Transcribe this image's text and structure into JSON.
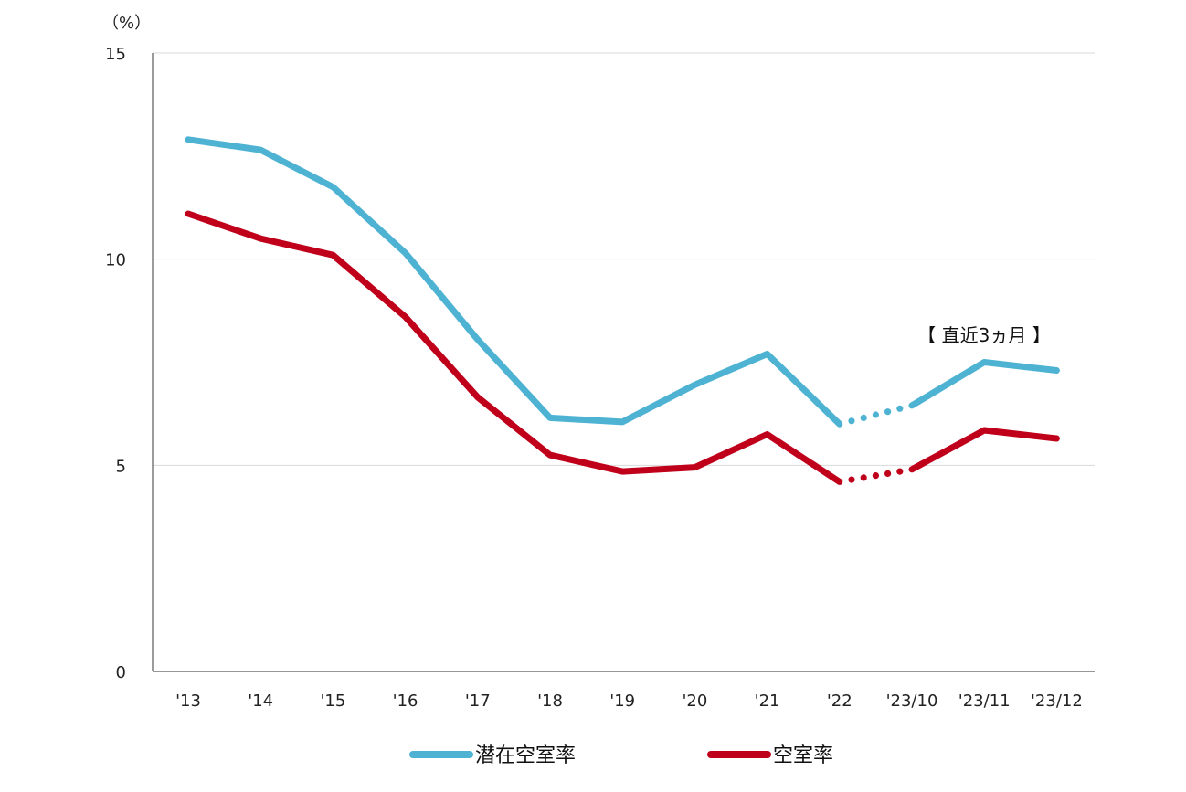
{
  "chart_data": {
    "type": "line",
    "title": "",
    "xlabel": "",
    "ylabel": "",
    "unit_label": "（%）",
    "categories": [
      "'13",
      "'14",
      "'15",
      "'16",
      "'17",
      "'18",
      "'19",
      "'20",
      "'21",
      "'22",
      "'23/10",
      "'23/11",
      "'23/12"
    ],
    "ylim": [
      0,
      15
    ],
    "yticks": [
      0,
      5,
      10,
      15
    ],
    "grid": "horizontal",
    "legend_position": "bottom",
    "annotation": "【 直近3ヵ月 】",
    "series": [
      {
        "name": "潜在空室率",
        "color": "#4eb3d3",
        "values": [
          12.9,
          12.65,
          11.75,
          10.15,
          8.05,
          6.15,
          6.05,
          6.95,
          7.7,
          6.0,
          6.45,
          7.5,
          7.3
        ]
      },
      {
        "name": "空室率",
        "color": "#c0001a",
        "values": [
          11.1,
          10.5,
          10.1,
          8.6,
          6.65,
          5.25,
          4.85,
          4.95,
          5.75,
          4.6,
          4.9,
          5.85,
          5.65
        ]
      }
    ]
  }
}
